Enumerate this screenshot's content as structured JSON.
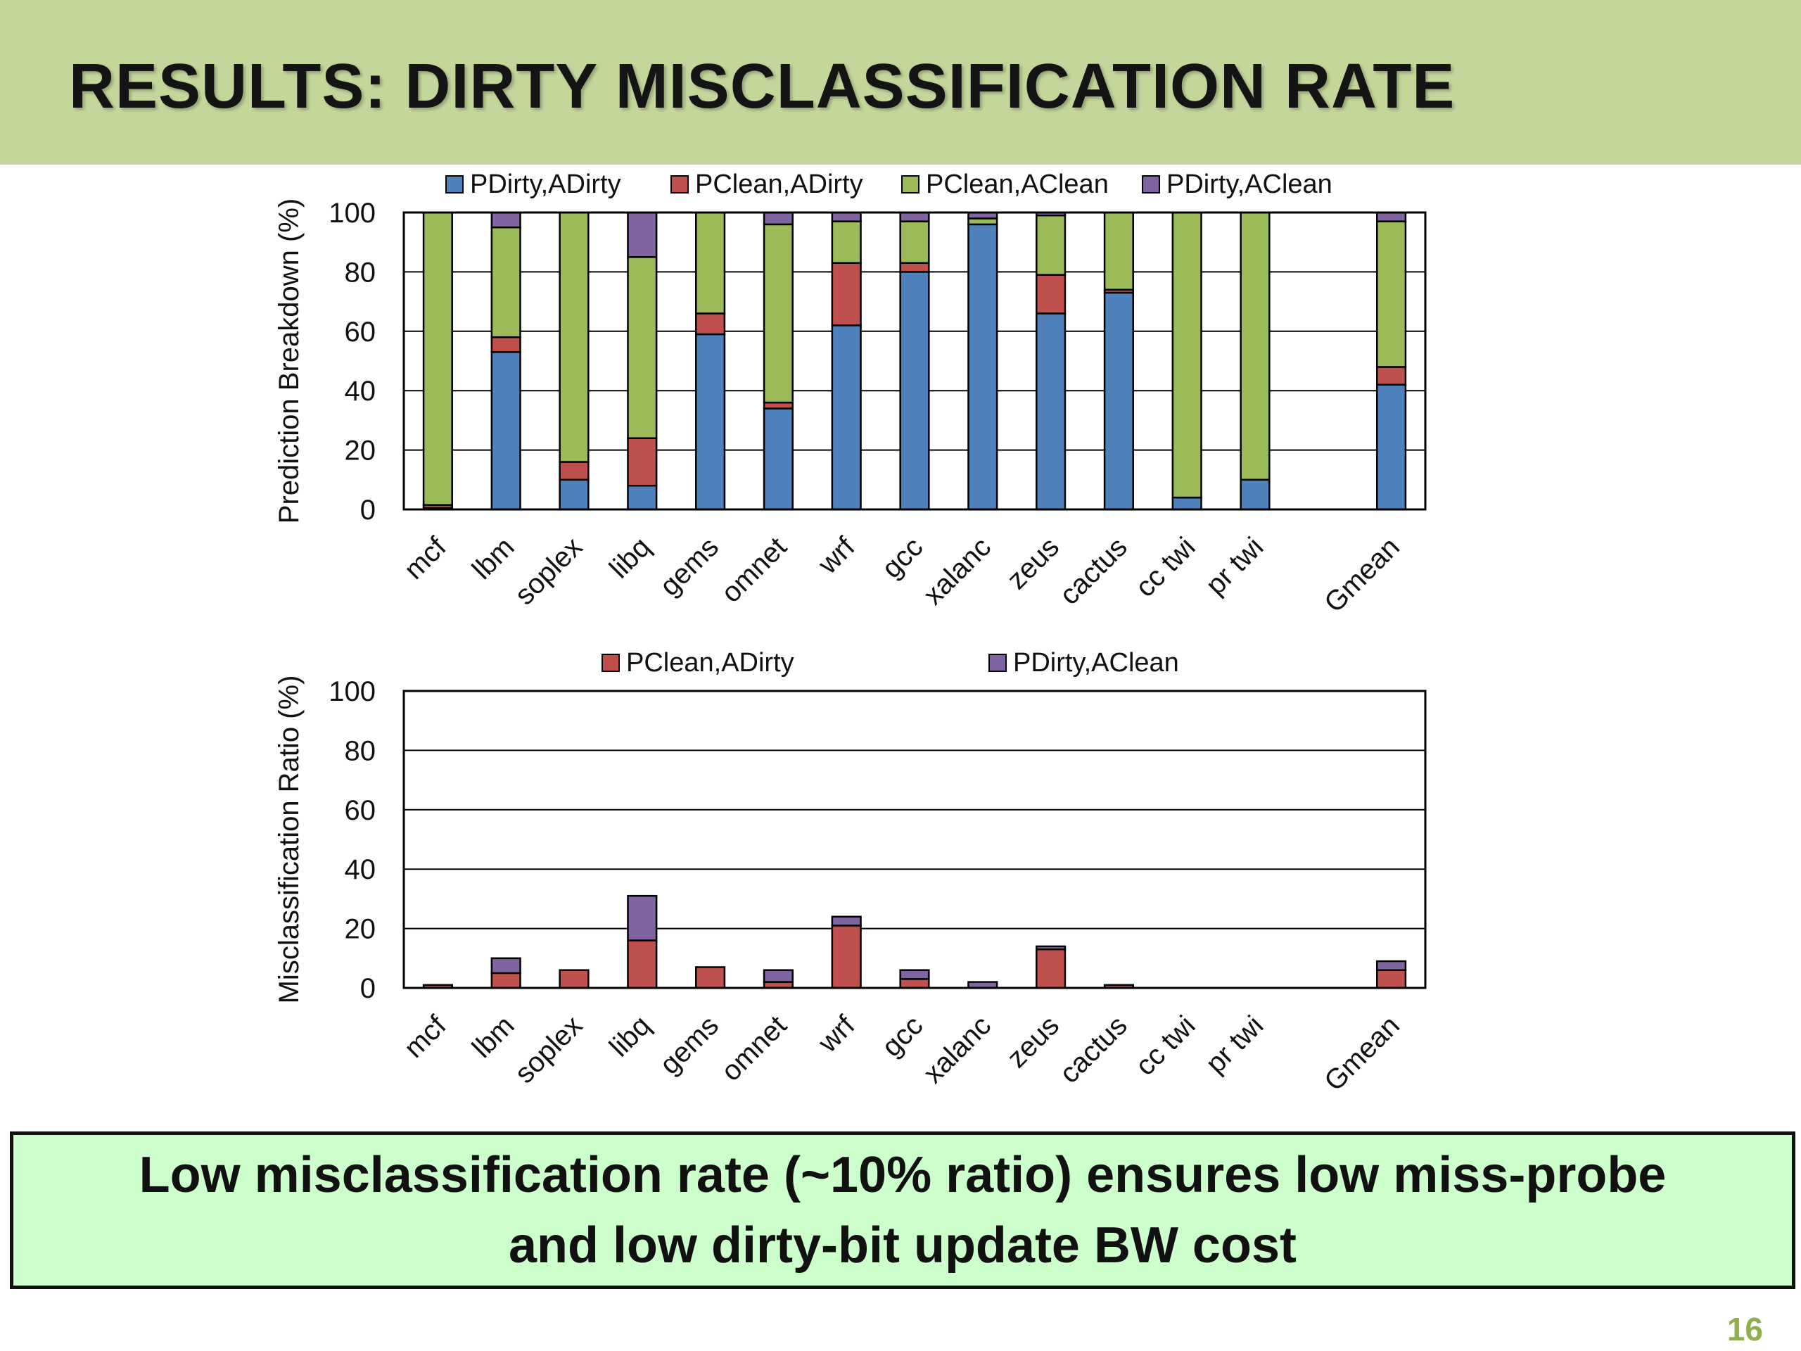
{
  "slide": {
    "title": "RESULTS: DIRTY MISCLASSIFICATION RATE",
    "summary_line1": "Low misclassification rate (~10% ratio) ensures low miss-probe",
    "summary_line2": "and low dirty-bit update BW cost",
    "page_number": "16"
  },
  "colors": {
    "title_bar": "#c4d79b",
    "summary_box": "#ccffcc",
    "PDirty,ADirty": "#4f81bd",
    "PClean,ADirty": "#c0504d",
    "PClean,AClean": "#9bbb59",
    "PDirty,AClean": "#8064a2"
  },
  "chart_data": [
    {
      "type": "bar",
      "stacked": true,
      "ylabel": "Prediction Breakdown (%)",
      "ylim": [
        0,
        100
      ],
      "yticks": [
        0,
        20,
        40,
        60,
        80,
        100
      ],
      "grid": true,
      "legend": "top",
      "categories": [
        "mcf",
        "lbm",
        "soplex",
        "libq",
        "gems",
        "omnet",
        "wrf",
        "gcc",
        "xalanc",
        "zeus",
        "cactus",
        "cc twi",
        "pr twi",
        "",
        "Gmean"
      ],
      "series": [
        {
          "name": "PDirty,ADirty",
          "color": "#4f81bd",
          "values": [
            0.5,
            53,
            10,
            8,
            59,
            34,
            62,
            80,
            96,
            66,
            73,
            4,
            10,
            null,
            42
          ]
        },
        {
          "name": "PClean,ADirty",
          "color": "#c0504d",
          "values": [
            1,
            5,
            6,
            16,
            7,
            2,
            21,
            3,
            0,
            13,
            1,
            0,
            0,
            null,
            6
          ]
        },
        {
          "name": "PClean,AClean",
          "color": "#9bbb59",
          "values": [
            98.5,
            37,
            84,
            61,
            34,
            60,
            14,
            14,
            2,
            20,
            26,
            96,
            90,
            null,
            49
          ]
        },
        {
          "name": "PDirty,AClean",
          "color": "#8064a2",
          "values": [
            0,
            5,
            0,
            15,
            0,
            4,
            3,
            3,
            2,
            1,
            0,
            0,
            0,
            null,
            3
          ]
        }
      ]
    },
    {
      "type": "bar",
      "stacked": true,
      "ylabel": "Misclassification Ratio (%)",
      "ylim": [
        0,
        100
      ],
      "yticks": [
        0,
        20,
        40,
        60,
        80,
        100
      ],
      "grid": true,
      "legend": "top",
      "categories": [
        "mcf",
        "lbm",
        "soplex",
        "libq",
        "gems",
        "omnet",
        "wrf",
        "gcc",
        "xalanc",
        "zeus",
        "cactus",
        "cc twi",
        "pr twi",
        "",
        "Gmean"
      ],
      "series": [
        {
          "name": "PClean,ADirty",
          "color": "#c0504d",
          "values": [
            1,
            5,
            6,
            16,
            7,
            2,
            21,
            3,
            0,
            13,
            1,
            0,
            0,
            null,
            6
          ]
        },
        {
          "name": "PDirty,AClean",
          "color": "#8064a2",
          "values": [
            0,
            5,
            0,
            15,
            0,
            4,
            3,
            3,
            2,
            1,
            0,
            0,
            0,
            null,
            3
          ]
        }
      ]
    }
  ]
}
